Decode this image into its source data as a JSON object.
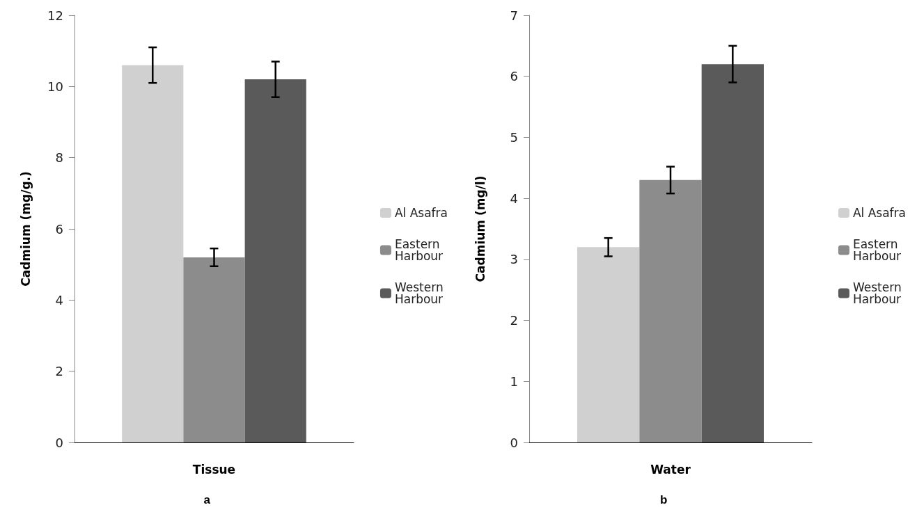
{
  "chart_data": [
    {
      "type": "bar",
      "title": "a",
      "ylabel": "Cadmium (mg/g.)",
      "categories": [
        "Tissue"
      ],
      "ylim": [
        0,
        12
      ],
      "yticks": [
        0,
        2,
        4,
        6,
        8,
        10,
        12
      ],
      "grid": false,
      "legend": "right",
      "series": [
        {
          "name": "Al Asafra",
          "color": "#d0d0d0",
          "values": [
            10.6
          ],
          "errors": [
            0.5
          ]
        },
        {
          "name": "Eastern Harbour",
          "color": "#8c8c8c",
          "values": [
            5.2
          ],
          "errors": [
            0.25
          ]
        },
        {
          "name": "Western Harbour",
          "color": "#5a5a5a",
          "values": [
            10.2
          ],
          "errors": [
            0.5
          ]
        }
      ]
    },
    {
      "type": "bar",
      "title": "b",
      "ylabel": "Cadmium (mg/l)",
      "categories": [
        "Water"
      ],
      "ylim": [
        0,
        7
      ],
      "yticks": [
        0,
        1,
        2,
        3,
        4,
        5,
        6,
        7
      ],
      "grid": false,
      "legend": "right",
      "series": [
        {
          "name": "Al Asafra",
          "color": "#d0d0d0",
          "values": [
            3.2
          ],
          "errors": [
            0.15
          ]
        },
        {
          "name": "Eastern Harbour",
          "color": "#8c8c8c",
          "values": [
            4.3
          ],
          "errors": [
            0.22
          ]
        },
        {
          "name": "Western Harbour",
          "color": "#5a5a5a",
          "values": [
            6.2
          ],
          "errors": [
            0.3
          ]
        }
      ]
    }
  ]
}
